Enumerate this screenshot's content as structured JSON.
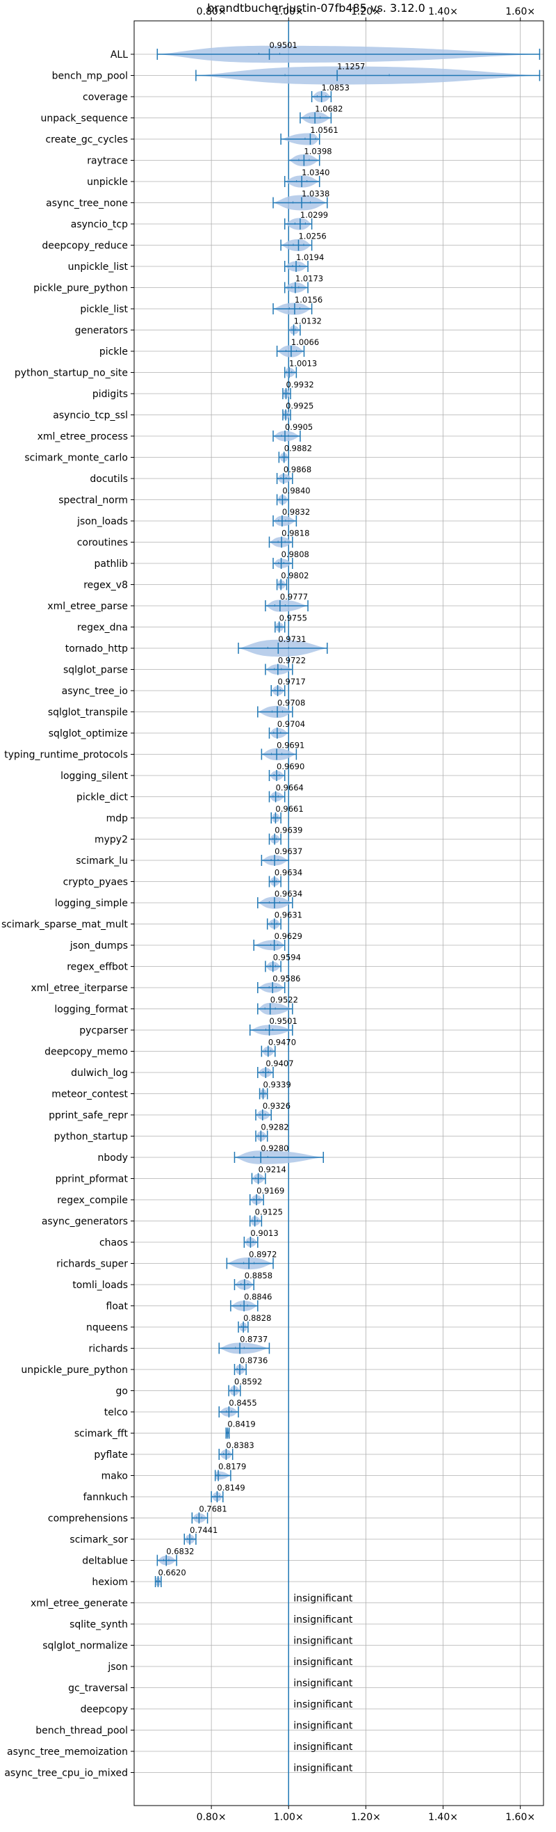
{
  "chart_data": {
    "type": "violin",
    "title": "brandtbucher-justin-07fb485 vs. 3.12.0",
    "xlim": [
      0.6,
      1.66
    ],
    "x_ticks": [
      0.8,
      1.0,
      1.2,
      1.4,
      1.6
    ],
    "x_tick_labels": [
      "0.80×",
      "1.00×",
      "1.20×",
      "1.40×",
      "1.60×"
    ],
    "reference_x": 1.0,
    "grid": true,
    "insignificant_label": "insignificant",
    "colors": {
      "line": "#1f77b4",
      "violin": "#aec7e8",
      "grid": "#b0b0b0"
    },
    "benchmarks": [
      {
        "name": "ALL",
        "median": 0.9501,
        "min": 0.66,
        "max": 1.65,
        "spread": 0.06
      },
      {
        "name": "bench_mp_pool",
        "median": 1.1257,
        "min": 0.76,
        "max": 1.65,
        "spread": 0.3
      },
      {
        "name": "coverage",
        "median": 1.0853,
        "min": 1.06,
        "max": 1.11,
        "spread": 0.025
      },
      {
        "name": "unpack_sequence",
        "median": 1.0682,
        "min": 1.03,
        "max": 1.11,
        "spread": 0.03
      },
      {
        "name": "create_gc_cycles",
        "median": 1.0561,
        "min": 0.98,
        "max": 1.08,
        "spread": 0.03
      },
      {
        "name": "raytrace",
        "median": 1.0398,
        "min": 1.0,
        "max": 1.08,
        "spread": 0.03
      },
      {
        "name": "unpickle",
        "median": 1.034,
        "min": 0.99,
        "max": 1.08,
        "spread": 0.03
      },
      {
        "name": "async_tree_none",
        "median": 1.0338,
        "min": 0.96,
        "max": 1.1,
        "spread": 0.05
      },
      {
        "name": "asyncio_tcp",
        "median": 1.0299,
        "min": 0.99,
        "max": 1.06,
        "spread": 0.03
      },
      {
        "name": "deepcopy_reduce",
        "median": 1.0256,
        "min": 0.98,
        "max": 1.06,
        "spread": 0.03
      },
      {
        "name": "unpickle_list",
        "median": 1.0194,
        "min": 0.99,
        "max": 1.05,
        "spread": 0.02
      },
      {
        "name": "pickle_pure_python",
        "median": 1.0173,
        "min": 0.99,
        "max": 1.05,
        "spread": 0.02
      },
      {
        "name": "pickle_list",
        "median": 1.0156,
        "min": 0.96,
        "max": 1.06,
        "spread": 0.03
      },
      {
        "name": "generators",
        "median": 1.0132,
        "min": 1.0,
        "max": 1.03,
        "spread": 0.01
      },
      {
        "name": "pickle",
        "median": 1.0066,
        "min": 0.97,
        "max": 1.04,
        "spread": 0.03
      },
      {
        "name": "python_startup_no_site",
        "median": 1.0013,
        "min": 0.99,
        "max": 1.02,
        "spread": 0.015
      },
      {
        "name": "pidigits",
        "median": 0.9932,
        "min": 0.985,
        "max": 1.005,
        "spread": 0.01
      },
      {
        "name": "asyncio_tcp_ssl",
        "median": 0.9925,
        "min": 0.985,
        "max": 1.005,
        "spread": 0.01
      },
      {
        "name": "xml_etree_process",
        "median": 0.9905,
        "min": 0.96,
        "max": 1.03,
        "spread": 0.02
      },
      {
        "name": "scimark_monte_carlo",
        "median": 0.9882,
        "min": 0.975,
        "max": 1.0,
        "spread": 0.01
      },
      {
        "name": "docutils",
        "median": 0.9868,
        "min": 0.97,
        "max": 1.01,
        "spread": 0.015
      },
      {
        "name": "spectral_norm",
        "median": 0.984,
        "min": 0.97,
        "max": 1.0,
        "spread": 0.015
      },
      {
        "name": "json_loads",
        "median": 0.9832,
        "min": 0.96,
        "max": 1.02,
        "spread": 0.02
      },
      {
        "name": "coroutines",
        "median": 0.9818,
        "min": 0.95,
        "max": 1.01,
        "spread": 0.02
      },
      {
        "name": "pathlib",
        "median": 0.9808,
        "min": 0.96,
        "max": 1.01,
        "spread": 0.015
      },
      {
        "name": "regex_v8",
        "median": 0.9802,
        "min": 0.97,
        "max": 0.995,
        "spread": 0.01
      },
      {
        "name": "xml_etree_parse",
        "median": 0.9777,
        "min": 0.94,
        "max": 1.05,
        "spread": 0.03
      },
      {
        "name": "regex_dna",
        "median": 0.9755,
        "min": 0.965,
        "max": 0.99,
        "spread": 0.01
      },
      {
        "name": "tornado_http",
        "median": 0.9731,
        "min": 0.87,
        "max": 1.1,
        "spread": 0.06
      },
      {
        "name": "sqlglot_parse",
        "median": 0.9722,
        "min": 0.94,
        "max": 1.01,
        "spread": 0.02
      },
      {
        "name": "async_tree_io",
        "median": 0.9717,
        "min": 0.955,
        "max": 0.99,
        "spread": 0.015
      },
      {
        "name": "sqlglot_transpile",
        "median": 0.9708,
        "min": 0.92,
        "max": 1.01,
        "spread": 0.03
      },
      {
        "name": "sqlglot_optimize",
        "median": 0.9704,
        "min": 0.95,
        "max": 1.0,
        "spread": 0.02
      },
      {
        "name": "typing_runtime_protocols",
        "median": 0.9691,
        "min": 0.93,
        "max": 1.02,
        "spread": 0.03
      },
      {
        "name": "logging_silent",
        "median": 0.969,
        "min": 0.95,
        "max": 0.99,
        "spread": 0.015
      },
      {
        "name": "pickle_dict",
        "median": 0.9664,
        "min": 0.95,
        "max": 0.99,
        "spread": 0.015
      },
      {
        "name": "mdp",
        "median": 0.9661,
        "min": 0.955,
        "max": 0.98,
        "spread": 0.01
      },
      {
        "name": "mypy2",
        "median": 0.9639,
        "min": 0.95,
        "max": 0.98,
        "spread": 0.01
      },
      {
        "name": "scimark_lu",
        "median": 0.9637,
        "min": 0.93,
        "max": 1.0,
        "spread": 0.02
      },
      {
        "name": "crypto_pyaes",
        "median": 0.9634,
        "min": 0.95,
        "max": 0.98,
        "spread": 0.01
      },
      {
        "name": "logging_simple",
        "median": 0.9634,
        "min": 0.92,
        "max": 1.01,
        "spread": 0.03
      },
      {
        "name": "scimark_sparse_mat_mult",
        "median": 0.9631,
        "min": 0.945,
        "max": 0.98,
        "spread": 0.015
      },
      {
        "name": "json_dumps",
        "median": 0.9629,
        "min": 0.91,
        "max": 0.99,
        "spread": 0.02
      },
      {
        "name": "regex_effbot",
        "median": 0.9594,
        "min": 0.94,
        "max": 0.98,
        "spread": 0.015
      },
      {
        "name": "xml_etree_iterparse",
        "median": 0.9586,
        "min": 0.92,
        "max": 0.99,
        "spread": 0.02
      },
      {
        "name": "logging_format",
        "median": 0.9522,
        "min": 0.92,
        "max": 1.01,
        "spread": 0.03
      },
      {
        "name": "pycparser",
        "median": 0.9501,
        "min": 0.9,
        "max": 1.01,
        "spread": 0.02
      },
      {
        "name": "deepcopy_memo",
        "median": 0.947,
        "min": 0.93,
        "max": 0.965,
        "spread": 0.015
      },
      {
        "name": "dulwich_log",
        "median": 0.9407,
        "min": 0.92,
        "max": 0.96,
        "spread": 0.015
      },
      {
        "name": "meteor_contest",
        "median": 0.9339,
        "min": 0.925,
        "max": 0.945,
        "spread": 0.01
      },
      {
        "name": "pprint_safe_repr",
        "median": 0.9326,
        "min": 0.915,
        "max": 0.955,
        "spread": 0.015
      },
      {
        "name": "python_startup",
        "median": 0.9282,
        "min": 0.915,
        "max": 0.945,
        "spread": 0.015
      },
      {
        "name": "nbody",
        "median": 0.928,
        "min": 0.86,
        "max": 1.09,
        "spread": 0.04
      },
      {
        "name": "pprint_pformat",
        "median": 0.9214,
        "min": 0.905,
        "max": 0.94,
        "spread": 0.015
      },
      {
        "name": "regex_compile",
        "median": 0.9169,
        "min": 0.9,
        "max": 0.935,
        "spread": 0.015
      },
      {
        "name": "async_generators",
        "median": 0.9125,
        "min": 0.9,
        "max": 0.93,
        "spread": 0.015
      },
      {
        "name": "chaos",
        "median": 0.9013,
        "min": 0.885,
        "max": 0.92,
        "spread": 0.015
      },
      {
        "name": "richards_super",
        "median": 0.8972,
        "min": 0.84,
        "max": 0.96,
        "spread": 0.03
      },
      {
        "name": "tomli_loads",
        "median": 0.8858,
        "min": 0.86,
        "max": 0.91,
        "spread": 0.02
      },
      {
        "name": "float",
        "median": 0.8846,
        "min": 0.85,
        "max": 0.92,
        "spread": 0.02
      },
      {
        "name": "nqueens",
        "median": 0.8828,
        "min": 0.87,
        "max": 0.895,
        "spread": 0.01
      },
      {
        "name": "richards",
        "median": 0.8737,
        "min": 0.82,
        "max": 0.95,
        "spread": 0.025
      },
      {
        "name": "unpickle_pure_python",
        "median": 0.8736,
        "min": 0.86,
        "max": 0.89,
        "spread": 0.015
      },
      {
        "name": "go",
        "median": 0.8592,
        "min": 0.845,
        "max": 0.875,
        "spread": 0.015
      },
      {
        "name": "telco",
        "median": 0.8455,
        "min": 0.82,
        "max": 0.87,
        "spread": 0.015
      },
      {
        "name": "scimark_fft",
        "median": 0.8419,
        "min": 0.838,
        "max": 0.846,
        "spread": 0.005
      },
      {
        "name": "pyflate",
        "median": 0.8383,
        "min": 0.82,
        "max": 0.855,
        "spread": 0.015
      },
      {
        "name": "mako",
        "median": 0.8179,
        "min": 0.81,
        "max": 0.85,
        "spread": 0.008
      },
      {
        "name": "fannkuch",
        "median": 0.8149,
        "min": 0.8,
        "max": 0.83,
        "spread": 0.012
      },
      {
        "name": "comprehensions",
        "median": 0.7681,
        "min": 0.75,
        "max": 0.79,
        "spread": 0.015
      },
      {
        "name": "scimark_sor",
        "median": 0.7441,
        "min": 0.73,
        "max": 0.76,
        "spread": 0.012
      },
      {
        "name": "deltablue",
        "median": 0.6832,
        "min": 0.66,
        "max": 0.71,
        "spread": 0.015
      },
      {
        "name": "hexiom",
        "median": 0.662,
        "min": 0.655,
        "max": 0.67,
        "spread": 0.008
      },
      {
        "name": "xml_etree_generate",
        "insignificant": true
      },
      {
        "name": "sqlite_synth",
        "insignificant": true
      },
      {
        "name": "sqlglot_normalize",
        "insignificant": true
      },
      {
        "name": "json",
        "insignificant": true
      },
      {
        "name": "gc_traversal",
        "insignificant": true
      },
      {
        "name": "deepcopy",
        "insignificant": true
      },
      {
        "name": "bench_thread_pool",
        "insignificant": true
      },
      {
        "name": "async_tree_memoization",
        "insignificant": true
      },
      {
        "name": "async_tree_cpu_io_mixed",
        "insignificant": true
      }
    ]
  }
}
